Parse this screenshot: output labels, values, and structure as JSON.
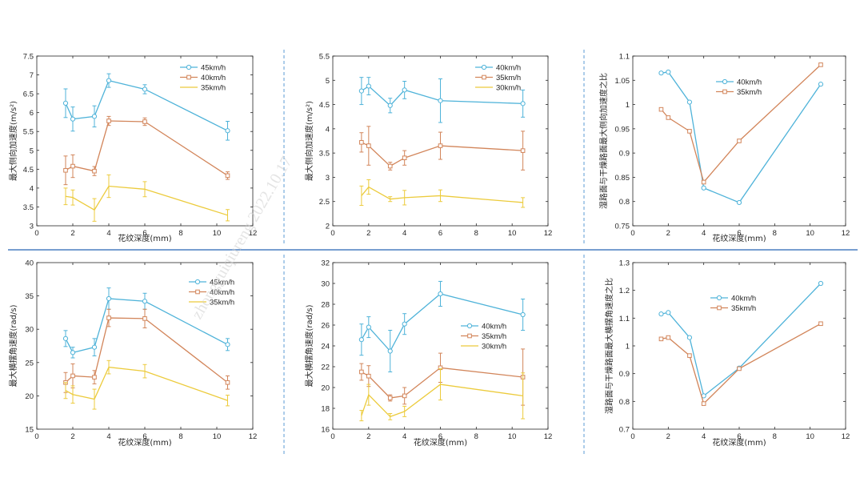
{
  "watermark": "zhongguiqiureng 2022.10.17",
  "colors": {
    "blue": "#4fb3d9",
    "orange": "#d2855a",
    "yellow": "#eccb3c",
    "divider_dashed": "#5b9bd5",
    "divider_solid": "#4a7fc1",
    "axis": "#262626"
  },
  "chart_data": [
    {
      "type": "line",
      "error_bars": true,
      "xlabel": "花纹深度(mm)",
      "ylabel": "最大侧向加速度(m/s²)",
      "xlim": [
        0,
        12
      ],
      "ylim": [
        3,
        7.5
      ],
      "xticks": [
        "0",
        "2",
        "4",
        "6",
        "8",
        "10",
        "12"
      ],
      "yticks": [
        "3",
        "3.5",
        "4",
        "4.5",
        "5",
        "5.5",
        "6",
        "6.5",
        "7",
        "7.5"
      ],
      "legend_position": "top-right",
      "x": [
        1.6,
        2,
        3.2,
        4,
        6,
        10.6
      ],
      "series": [
        {
          "name": "45km/h",
          "color": "blue",
          "marker": "circle",
          "values": [
            6.25,
            5.83,
            5.9,
            6.85,
            6.62,
            5.52
          ],
          "errors": [
            0.38,
            0.32,
            0.28,
            0.18,
            0.12,
            0.25
          ]
        },
        {
          "name": "40km/h",
          "color": "orange",
          "marker": "square",
          "values": [
            4.47,
            4.58,
            4.45,
            5.78,
            5.76,
            4.33
          ],
          "errors": [
            0.38,
            0.3,
            0.12,
            0.12,
            0.1,
            0.1
          ]
        },
        {
          "name": "35km/h",
          "color": "yellow",
          "marker": "none",
          "values": [
            3.78,
            3.75,
            3.42,
            4.05,
            3.97,
            3.28
          ],
          "errors": [
            0.22,
            0.2,
            0.3,
            0.3,
            0.2,
            0.15
          ]
        }
      ]
    },
    {
      "type": "line",
      "error_bars": true,
      "xlabel": "",
      "ylabel": "最大侧向加速度(m/s²)",
      "xlim": [
        0,
        12
      ],
      "ylim": [
        2,
        5.5
      ],
      "xticks": [
        "0",
        "2",
        "4",
        "6",
        "8",
        "10",
        "12"
      ],
      "yticks": [
        "2",
        "2.5",
        "3",
        "3.5",
        "4",
        "4.5",
        "5",
        "5.5"
      ],
      "legend_position": "top-right",
      "x": [
        1.6,
        2,
        3.2,
        4,
        6,
        10.6
      ],
      "series": [
        {
          "name": "40km/h",
          "color": "blue",
          "marker": "circle",
          "values": [
            4.78,
            4.88,
            4.48,
            4.8,
            4.58,
            4.52
          ],
          "errors": [
            0.28,
            0.18,
            0.15,
            0.18,
            0.45,
            0.28
          ]
        },
        {
          "name": "35km/h",
          "color": "orange",
          "marker": "square",
          "values": [
            3.72,
            3.65,
            3.23,
            3.4,
            3.65,
            3.55
          ],
          "errors": [
            0.2,
            0.4,
            0.08,
            0.15,
            0.28,
            0.4
          ]
        },
        {
          "name": "30km/h",
          "color": "yellow",
          "marker": "none",
          "values": [
            2.62,
            2.8,
            2.55,
            2.58,
            2.62,
            2.48
          ],
          "errors": [
            0.2,
            0.15,
            0.05,
            0.15,
            0.12,
            0.1
          ]
        }
      ]
    },
    {
      "type": "line",
      "error_bars": false,
      "xlabel": "花纹深度(mm)",
      "ylabel": "湿路面与干燥路面最大侧向加速度之比",
      "xlim": [
        0,
        12
      ],
      "ylim": [
        0.75,
        1.1
      ],
      "xticks": [
        "0",
        "2",
        "4",
        "6",
        "8",
        "10",
        "12"
      ],
      "yticks": [
        "0.75",
        "0.8",
        "0.85",
        "0.9",
        "0.95",
        "1",
        "1.05",
        "1.1"
      ],
      "legend_position": "top-center",
      "x": [
        1.6,
        2,
        3.2,
        4,
        6,
        10.6
      ],
      "series": [
        {
          "name": "40km/h",
          "color": "blue",
          "marker": "circle",
          "values": [
            1.065,
            1.067,
            1.005,
            0.828,
            0.798,
            1.042
          ]
        },
        {
          "name": "35km/h",
          "color": "orange",
          "marker": "square",
          "values": [
            0.99,
            0.973,
            0.945,
            0.84,
            0.925,
            1.082
          ]
        }
      ]
    },
    {
      "type": "line",
      "error_bars": true,
      "xlabel": "花纹深度(mm)",
      "ylabel": "最大横摆角速度(rad/s)",
      "xlim": [
        0,
        12
      ],
      "ylim": [
        15,
        40
      ],
      "xticks": [
        "0",
        "2",
        "4",
        "6",
        "8",
        "10",
        "12"
      ],
      "yticks": [
        "15",
        "20",
        "25",
        "30",
        "35",
        "40"
      ],
      "legend_position": "top-right",
      "x": [
        1.6,
        2,
        3.2,
        4,
        6,
        10.6
      ],
      "series": [
        {
          "name": "45km/h",
          "color": "blue",
          "marker": "circle",
          "values": [
            28.6,
            26.5,
            27.3,
            34.6,
            34.2,
            27.7
          ],
          "errors": [
            1.2,
            0.8,
            1.3,
            1.6,
            1.2,
            0.9
          ]
        },
        {
          "name": "40km/h",
          "color": "orange",
          "marker": "square",
          "values": [
            22.0,
            23.0,
            22.8,
            31.7,
            31.6,
            22.0
          ],
          "errors": [
            1.5,
            1.8,
            1.0,
            1.3,
            1.4,
            1.0
          ]
        },
        {
          "name": "35km/h",
          "color": "yellow",
          "marker": "none",
          "values": [
            20.8,
            20.2,
            19.5,
            24.3,
            23.7,
            19.3
          ],
          "errors": [
            1.2,
            1.3,
            1.5,
            1.0,
            1.0,
            0.8
          ]
        }
      ]
    },
    {
      "type": "line",
      "error_bars": true,
      "xlabel": "花纹深度(mm)",
      "ylabel": "最大横摆角速度(rad/s)",
      "xlim": [
        0,
        12
      ],
      "ylim": [
        16,
        32
      ],
      "xticks": [
        "0",
        "2",
        "4",
        "6",
        "8",
        "10",
        "12"
      ],
      "yticks": [
        "16",
        "18",
        "20",
        "22",
        "24",
        "26",
        "28",
        "30",
        "32"
      ],
      "legend_position": "right",
      "x": [
        1.6,
        2,
        3.2,
        4,
        6,
        10.6
      ],
      "series": [
        {
          "name": "40km/h",
          "color": "blue",
          "marker": "circle",
          "values": [
            24.6,
            25.8,
            23.5,
            26.1,
            29.0,
            27.0
          ],
          "errors": [
            1.5,
            1.0,
            2.0,
            1.0,
            1.2,
            1.5
          ]
        },
        {
          "name": "35km/h",
          "color": "orange",
          "marker": "square",
          "values": [
            21.5,
            21.1,
            19.0,
            19.2,
            21.9,
            21.0
          ],
          "errors": [
            0.8,
            1.0,
            0.3,
            0.8,
            1.4,
            2.7
          ]
        },
        {
          "name": "30km/h",
          "color": "yellow",
          "marker": "none",
          "values": [
            17.3,
            19.3,
            17.2,
            17.7,
            20.3,
            19.2
          ],
          "errors": [
            0.5,
            1.0,
            0.3,
            0.5,
            1.5,
            2.2
          ]
        }
      ]
    },
    {
      "type": "line",
      "error_bars": false,
      "xlabel": "花纹深度(mm)",
      "ylabel": "湿路面与干燥路面最大横摆角速度之比",
      "xlim": [
        0,
        12
      ],
      "ylim": [
        0.7,
        1.3
      ],
      "xticks": [
        "0",
        "2",
        "4",
        "6",
        "8",
        "10",
        "12"
      ],
      "yticks": [
        "0.7",
        "0.8",
        "0.9",
        "1",
        "1.1",
        "1.2",
        "1.3"
      ],
      "legend_position": "top-center",
      "x": [
        1.6,
        2,
        3.2,
        4,
        6,
        10.6
      ],
      "series": [
        {
          "name": "40km/h",
          "color": "blue",
          "marker": "circle",
          "values": [
            1.115,
            1.12,
            1.03,
            0.82,
            0.92,
            1.225
          ]
        },
        {
          "name": "35km/h",
          "color": "orange",
          "marker": "square",
          "values": [
            1.025,
            1.03,
            0.965,
            0.792,
            0.918,
            1.08
          ]
        }
      ]
    }
  ]
}
